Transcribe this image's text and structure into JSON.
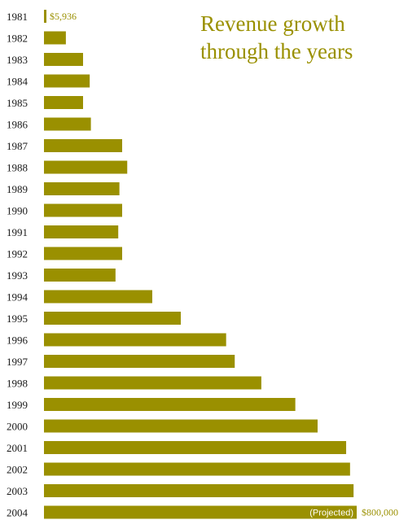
{
  "title_line1": "Revenue growth",
  "title_line2": "through the years",
  "chart_data": {
    "type": "bar",
    "orientation": "horizontal",
    "title": "Revenue growth through the years",
    "categories": [
      "1981",
      "1982",
      "1983",
      "1984",
      "1985",
      "1986",
      "1987",
      "1988",
      "1989",
      "1990",
      "1991",
      "1992",
      "1993",
      "1994",
      "1995",
      "1996",
      "1997",
      "1998",
      "1999",
      "2000",
      "2001",
      "2002",
      "2003",
      "2004"
    ],
    "values": [
      5936,
      56000,
      100000,
      117000,
      100000,
      120000,
      200000,
      213000,
      193000,
      200000,
      190000,
      200000,
      183000,
      277000,
      350000,
      466000,
      488000,
      556000,
      643000,
      700000,
      773000,
      783000,
      792000,
      800000
    ],
    "xlim": [
      0,
      800000
    ],
    "bar_color": "#9a9000",
    "label_color": "#9a9000",
    "annotations": {
      "first_value_label": "$5,936",
      "last_value_label": "$800,000",
      "last_bar_note": "(Projected)"
    },
    "grid": false,
    "legend": "none"
  }
}
